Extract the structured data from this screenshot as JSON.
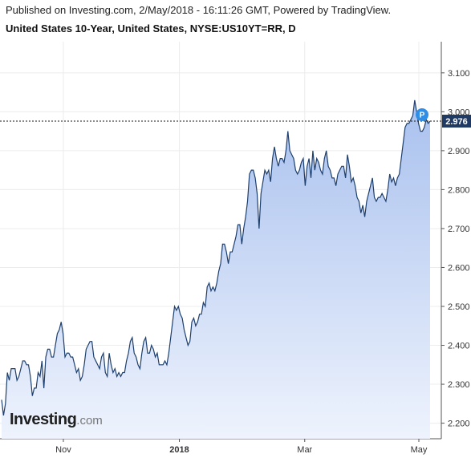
{
  "header": {
    "published": "Published on Investing.com, 2/May/2018 - 16:11:26 GMT, Powered by TradingView.",
    "title": "United States 10-Year, United States, NYSE:US10YT=RR, D"
  },
  "logo": {
    "main": "Investing",
    "suffix": ".com"
  },
  "chart_data": {
    "type": "area",
    "x_axis_labels": [
      {
        "label": "Nov",
        "t": 33,
        "bold": false
      },
      {
        "label": "2018",
        "t": 95,
        "bold": true
      },
      {
        "label": "Mar",
        "t": 162,
        "bold": false
      },
      {
        "label": "May",
        "t": 223,
        "bold": false
      }
    ],
    "y_ticks": [
      "2.200",
      "2.300",
      "2.400",
      "2.500",
      "2.600",
      "2.700",
      "2.800",
      "2.900",
      "3.000",
      "3.100"
    ],
    "ylim": [
      2.16,
      3.18
    ],
    "xlim": [
      0,
      229
    ],
    "last_value": "2.976",
    "last_value_num": 2.976,
    "marker_label": "P",
    "line_color": "#1d3f6e",
    "fill_top_color": "#a9c1ee",
    "fill_bottom_color": "#eef3fd",
    "values": [
      2.26,
      2.22,
      2.25,
      2.33,
      2.31,
      2.34,
      2.34,
      2.34,
      2.31,
      2.32,
      2.34,
      2.36,
      2.36,
      2.35,
      2.35,
      2.32,
      2.27,
      2.29,
      2.29,
      2.33,
      2.32,
      2.36,
      2.29,
      2.37,
      2.39,
      2.39,
      2.37,
      2.37,
      2.4,
      2.43,
      2.44,
      2.46,
      2.43,
      2.37,
      2.38,
      2.38,
      2.37,
      2.37,
      2.35,
      2.33,
      2.34,
      2.31,
      2.32,
      2.35,
      2.39,
      2.4,
      2.41,
      2.41,
      2.37,
      2.36,
      2.35,
      2.34,
      2.37,
      2.38,
      2.33,
      2.32,
      2.38,
      2.35,
      2.33,
      2.34,
      2.32,
      2.33,
      2.32,
      2.33,
      2.33,
      2.36,
      2.38,
      2.41,
      2.42,
      2.38,
      2.37,
      2.35,
      2.34,
      2.38,
      2.41,
      2.42,
      2.38,
      2.38,
      2.4,
      2.39,
      2.37,
      2.38,
      2.35,
      2.35,
      2.35,
      2.36,
      2.35,
      2.38,
      2.42,
      2.46,
      2.5,
      2.49,
      2.5,
      2.48,
      2.47,
      2.44,
      2.42,
      2.4,
      2.41,
      2.46,
      2.47,
      2.45,
      2.46,
      2.48,
      2.48,
      2.51,
      2.5,
      2.55,
      2.56,
      2.54,
      2.55,
      2.54,
      2.56,
      2.59,
      2.61,
      2.66,
      2.66,
      2.64,
      2.61,
      2.64,
      2.64,
      2.66,
      2.68,
      2.71,
      2.71,
      2.66,
      2.7,
      2.73,
      2.77,
      2.84,
      2.85,
      2.85,
      2.83,
      2.79,
      2.7,
      2.79,
      2.82,
      2.85,
      2.84,
      2.85,
      2.82,
      2.88,
      2.91,
      2.88,
      2.86,
      2.88,
      2.88,
      2.87,
      2.9,
      2.95,
      2.9,
      2.89,
      2.88,
      2.85,
      2.84,
      2.85,
      2.87,
      2.88,
      2.81,
      2.86,
      2.88,
      2.83,
      2.9,
      2.85,
      2.88,
      2.87,
      2.85,
      2.84,
      2.88,
      2.9,
      2.86,
      2.85,
      2.83,
      2.83,
      2.81,
      2.84,
      2.85,
      2.86,
      2.86,
      2.83,
      2.89,
      2.86,
      2.82,
      2.83,
      2.81,
      2.78,
      2.77,
      2.74,
      2.76,
      2.73,
      2.77,
      2.79,
      2.81,
      2.83,
      2.78,
      2.77,
      2.78,
      2.78,
      2.79,
      2.78,
      2.77,
      2.8,
      2.84,
      2.82,
      2.83,
      2.81,
      2.83,
      2.84,
      2.88,
      2.92,
      2.96,
      2.97,
      2.97,
      2.98,
      2.99,
      3.03,
      3.0,
      2.97,
      2.95,
      2.95,
      2.96,
      2.98,
      2.97,
      2.976
    ]
  }
}
